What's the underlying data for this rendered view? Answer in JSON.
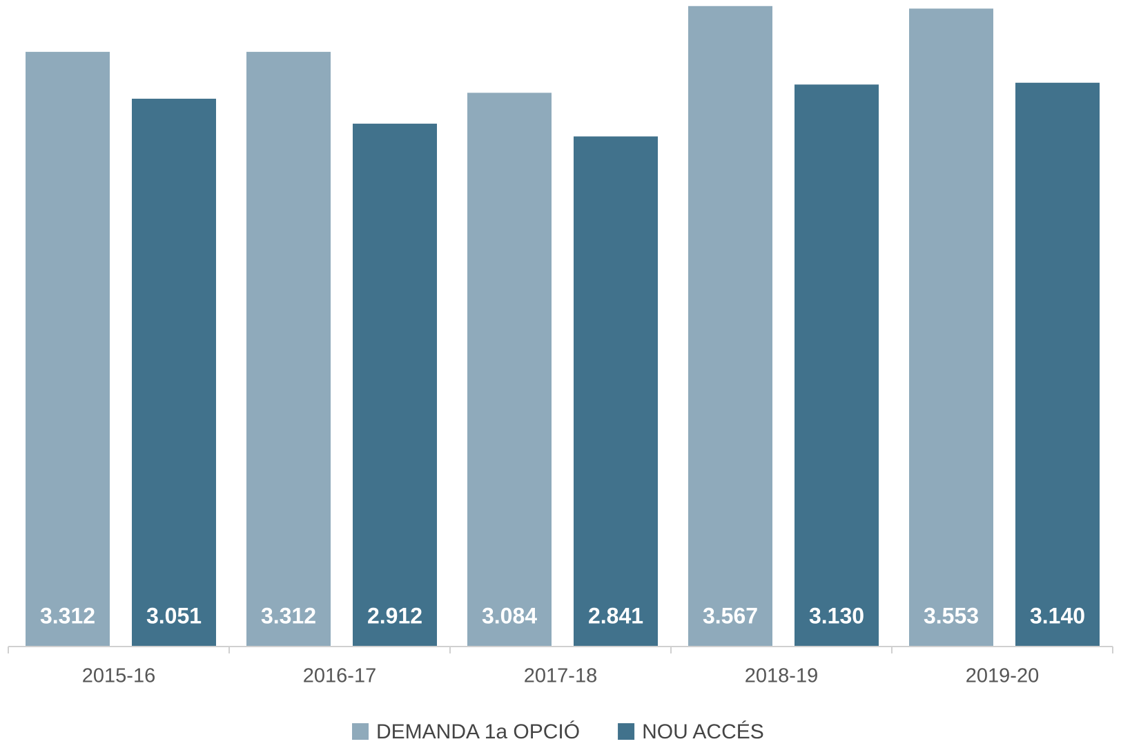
{
  "chart_data": {
    "type": "bar",
    "categories": [
      "2015-16",
      "2016-17",
      "2017-18",
      "2018-19",
      "2019-20"
    ],
    "series": [
      {
        "name": "DEMANDA 1a OPCIÓ",
        "color": "#8faabb",
        "values": [
          3312,
          3312,
          3084,
          3567,
          3553
        ],
        "value_labels": [
          "3.312",
          "3.312",
          "3.084",
          "3.567",
          "3.553"
        ]
      },
      {
        "name": "NOU ACCÉS",
        "color": "#41728c",
        "values": [
          3051,
          2912,
          2841,
          3130,
          3140
        ],
        "value_labels": [
          "3.051",
          "2.912",
          "2.841",
          "3.130",
          "3.140"
        ]
      }
    ],
    "ylim": [
      0,
      3570
    ],
    "legend": "bottom"
  }
}
